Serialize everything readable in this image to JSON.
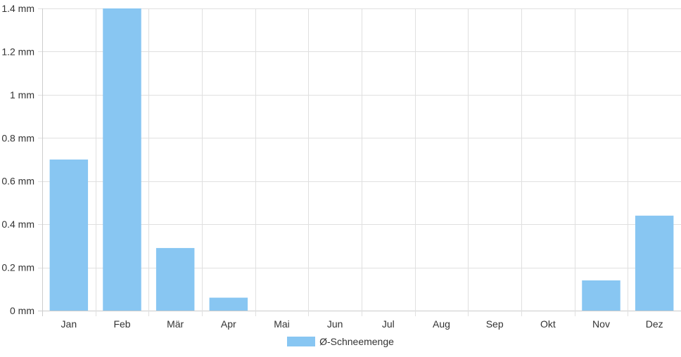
{
  "chart_data": {
    "type": "bar",
    "categories": [
      "Jan",
      "Feb",
      "Mär",
      "Apr",
      "Mai",
      "Jun",
      "Jul",
      "Aug",
      "Sep",
      "Okt",
      "Nov",
      "Dez"
    ],
    "series": [
      {
        "name": "Ø-Schneemenge",
        "values": [
          0.7,
          1.4,
          0.29,
          0.06,
          0,
          0,
          0,
          0,
          0,
          0,
          0.14,
          0.44
        ]
      }
    ],
    "ylim": [
      0,
      1.4
    ],
    "yticks": [
      0,
      0.2,
      0.4,
      0.6,
      0.8,
      1,
      1.2,
      1.4
    ],
    "ytick_labels": [
      "0 mm",
      "0.2 mm",
      "0.4 mm",
      "0.6 mm",
      "0.8 mm",
      "1 mm",
      "1.2 mm",
      "1.4 mm"
    ],
    "grid": true,
    "legend_position": "bottom",
    "colors": {
      "bar": "#88c6f2",
      "grid": "#e0e0e0",
      "axis": "#cccccc"
    }
  }
}
